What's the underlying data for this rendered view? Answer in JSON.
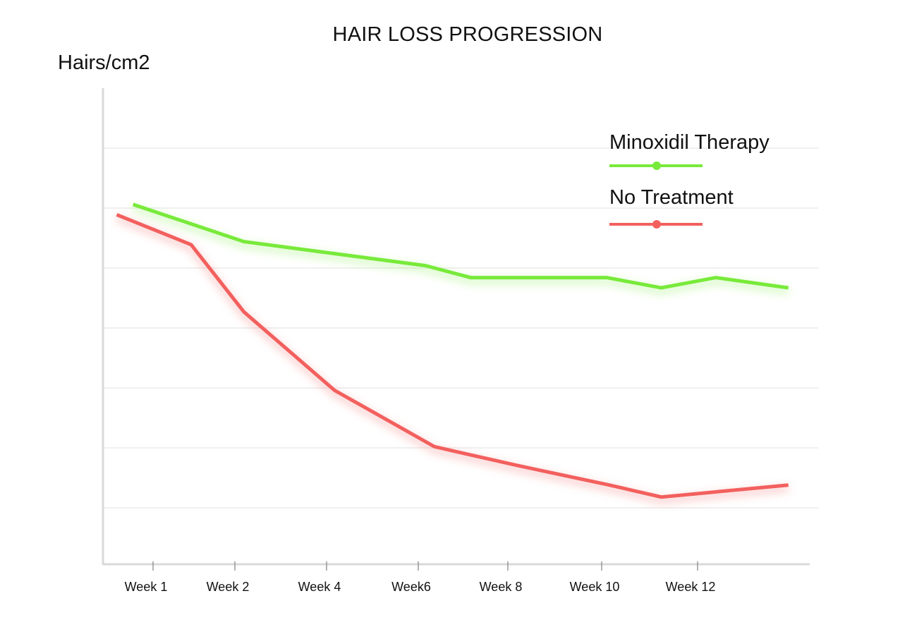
{
  "chart_data": {
    "type": "line",
    "title": "HAIR LOSS PROGRESSION",
    "ylabel": "Hairs/cm2",
    "xlabel": "",
    "categories": [
      "Week 1",
      "Week 2",
      "Week 4",
      "Week6",
      "Week 8",
      "Week 10",
      "Week 12"
    ],
    "x": [
      -0.4,
      0,
      0.5,
      1,
      1.5,
      2,
      2.5,
      3,
      3.5,
      4,
      4.5,
      5,
      5.5,
      6,
      6.5,
      7
    ],
    "ylim": [
      0,
      8
    ],
    "y_gridlines": [
      1,
      2,
      3,
      4,
      5,
      6,
      7
    ],
    "grid": true,
    "legend_position": "top-right",
    "series": [
      {
        "name": "Minoxidil Therapy",
        "color": "#78ea3a",
        "x": [
          -0.22,
          0.45,
          1.0,
          2.0,
          3.0,
          3.5,
          5.0,
          5.6,
          6.2,
          7.0
        ],
        "values": [
          6.06,
          5.72,
          5.44,
          5.24,
          5.04,
          4.84,
          4.84,
          4.67,
          4.84,
          4.67
        ]
      },
      {
        "name": "No Treatment",
        "color": "#f2605e",
        "x": [
          -0.4,
          0.42,
          1.0,
          2.0,
          3.1,
          4.0,
          5.0,
          5.6,
          7.0
        ],
        "values": [
          5.89,
          5.39,
          4.27,
          2.96,
          2.02,
          1.71,
          1.39,
          1.18,
          1.38
        ]
      }
    ]
  }
}
